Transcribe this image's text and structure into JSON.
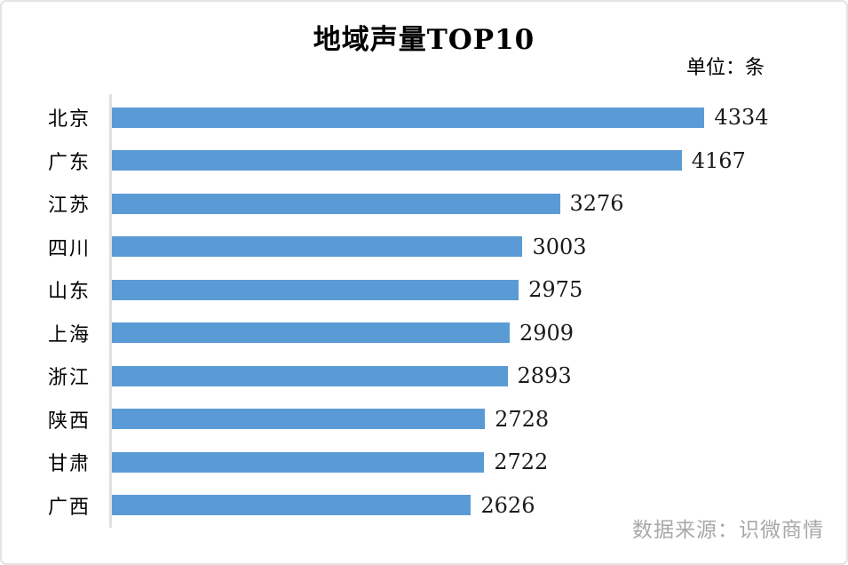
{
  "frame": {
    "background": "#FFFFFF",
    "border_color": "#E3E3E3"
  },
  "header": {
    "title": "地域声量TOP10",
    "unit_label": "单位：条"
  },
  "footer": {
    "source_label": "数据来源：识微商情",
    "source_color": "#A8A8A8"
  },
  "chart_data": {
    "type": "bar",
    "orientation": "horizontal",
    "title": "地域声量TOP10",
    "unit": "条",
    "categories": [
      "北京",
      "广东",
      "江苏",
      "四川",
      "山东",
      "上海",
      "浙江",
      "陕西",
      "甘肃",
      "广西"
    ],
    "values": [
      4334,
      4167,
      3276,
      3003,
      2975,
      2909,
      2893,
      2728,
      2722,
      2626
    ],
    "xlim": [
      0,
      5000
    ],
    "bar_color": "#5B9BD5",
    "axis_line_color": "#E0E0E0",
    "value_labels_shown": true,
    "grid": false,
    "legend": false,
    "source": "数据来源：识微商情"
  }
}
